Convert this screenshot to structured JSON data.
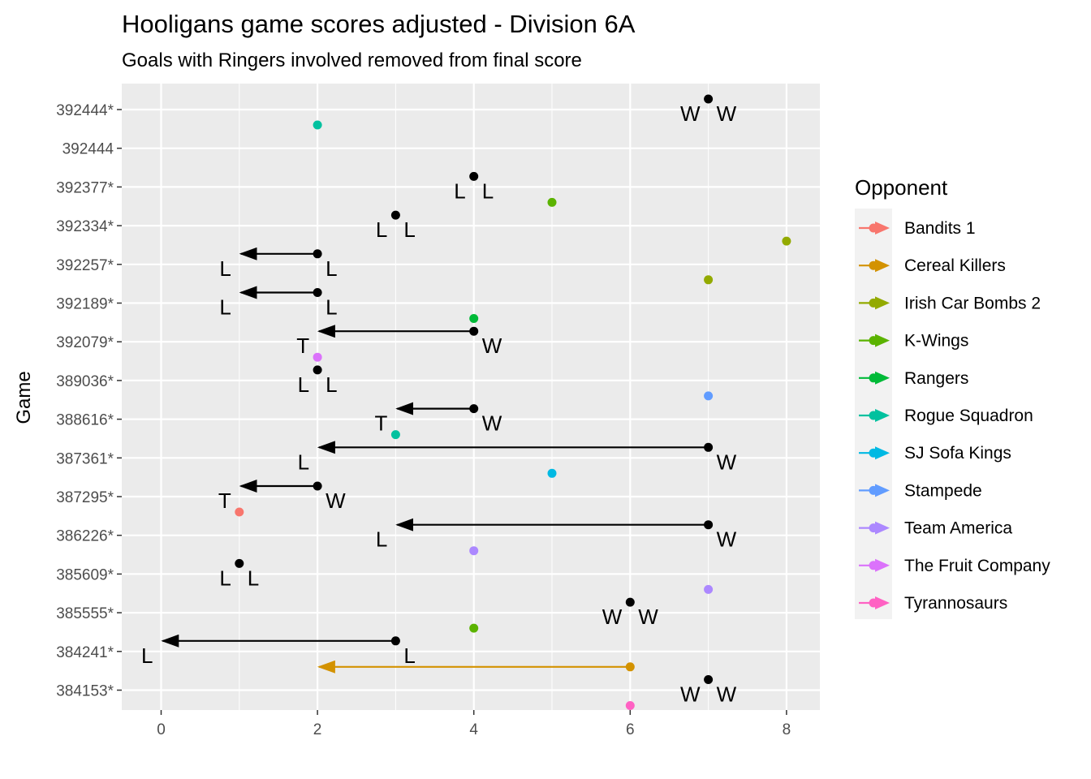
{
  "chart_data": {
    "type": "scatter",
    "title": "Hooligans game scores adjusted - Division 6A",
    "subtitle": "Goals with Ringers involved removed from final score",
    "ylabel": "Game",
    "xlim": [
      -0.5,
      8.4
    ],
    "x_ticks": [
      "0",
      "2",
      "4",
      "6",
      "8"
    ],
    "x_tick_values": [
      0,
      2,
      4,
      6,
      8
    ],
    "games": [
      "384153*",
      "384241*",
      "385555*",
      "385609*",
      "386226*",
      "387295*",
      "387361*",
      "388616*",
      "389036*",
      "392079*",
      "392189*",
      "392257*",
      "392334*",
      "392377*",
      "392444",
      "392444*"
    ],
    "legend_title": "Opponent",
    "opponents": [
      {
        "name": "Bandits 1",
        "color": "#F8766D"
      },
      {
        "name": "Cereal Killers",
        "color": "#D39200"
      },
      {
        "name": "Irish Car Bombs 2",
        "color": "#93AA00"
      },
      {
        "name": "K-Wings",
        "color": "#5BB300"
      },
      {
        "name": "Rangers",
        "color": "#00BA38"
      },
      {
        "name": "Rogue Squadron",
        "color": "#00C19F"
      },
      {
        "name": "SJ Sofa Kings",
        "color": "#00B9E3"
      },
      {
        "name": "Stampede",
        "color": "#619CFF"
      },
      {
        "name": "Team America",
        "color": "#AC88FF"
      },
      {
        "name": "The Fruit Company",
        "color": "#DB72FB"
      },
      {
        "name": "Tyrannosaurs",
        "color": "#FF61C3"
      }
    ],
    "hooligans_moves": [
      {
        "game": "392444*",
        "from": 7,
        "to": 7,
        "result_before": "W",
        "result_after": "W"
      },
      {
        "game": "392377*",
        "from": 4,
        "to": 4,
        "result_before": "L",
        "result_after": "L"
      },
      {
        "game": "392334*",
        "from": 3,
        "to": 3,
        "result_before": "L",
        "result_after": "L"
      },
      {
        "game": "392257*",
        "from": 2,
        "to": 1,
        "result_before": "L",
        "result_after": "L"
      },
      {
        "game": "392189*",
        "from": 2,
        "to": 1,
        "result_before": "L",
        "result_after": "L"
      },
      {
        "game": "392079*",
        "from": 4,
        "to": 2,
        "result_before": "W",
        "result_after": "T"
      },
      {
        "game": "389036*",
        "from": 2,
        "to": 2,
        "result_before": "L",
        "result_after": "L"
      },
      {
        "game": "388616*",
        "from": 4,
        "to": 3,
        "result_before": "W",
        "result_after": "T"
      },
      {
        "game": "387361*",
        "from": 7,
        "to": 2,
        "result_before": "W",
        "result_after": "L"
      },
      {
        "game": "387295*",
        "from": 2,
        "to": 1,
        "result_before": "W",
        "result_after": "T"
      },
      {
        "game": "386226*",
        "from": 7,
        "to": 3,
        "result_before": "W",
        "result_after": "L"
      },
      {
        "game": "385609*",
        "from": 1,
        "to": 1,
        "result_before": "L",
        "result_after": "L"
      },
      {
        "game": "385555*",
        "from": 6,
        "to": 6,
        "result_before": "W",
        "result_after": "W"
      },
      {
        "game": "384241*",
        "from": 3,
        "to": 0,
        "result_before": "L",
        "result_after": "L"
      },
      {
        "game": "384153*",
        "from": 7,
        "to": 7,
        "result_before": "W",
        "result_after": "W"
      }
    ],
    "opponent_points": [
      {
        "game": "392444*",
        "opponent": "Rogue Squadron",
        "score": 2
      },
      {
        "game": "392377*",
        "opponent": "K-Wings",
        "score": 5
      },
      {
        "game": "392334*",
        "opponent": "Irish Car Bombs 2",
        "score": 8
      },
      {
        "game": "392257*",
        "opponent": "Irish Car Bombs 2",
        "score": 7
      },
      {
        "game": "392189*",
        "opponent": "Rangers",
        "score": 4
      },
      {
        "game": "392079*",
        "opponent": "The Fruit Company",
        "score": 2
      },
      {
        "game": "389036*",
        "opponent": "Stampede",
        "score": 7
      },
      {
        "game": "388616*",
        "opponent": "Rogue Squadron",
        "score": 3
      },
      {
        "game": "387361*",
        "opponent": "SJ Sofa Kings",
        "score": 5
      },
      {
        "game": "387295*",
        "opponent": "Bandits 1",
        "score": 1
      },
      {
        "game": "386226*",
        "opponent": "Team America",
        "score": 4
      },
      {
        "game": "385609*",
        "opponent": "Team America",
        "score": 7
      },
      {
        "game": "385555*",
        "opponent": "K-Wings",
        "score": 4
      },
      {
        "game": "384241*",
        "opponent": "Cereal Killers",
        "from": 6,
        "to": 2
      },
      {
        "game": "384153*",
        "opponent": "Tyrannosaurs",
        "score": 6
      }
    ]
  }
}
